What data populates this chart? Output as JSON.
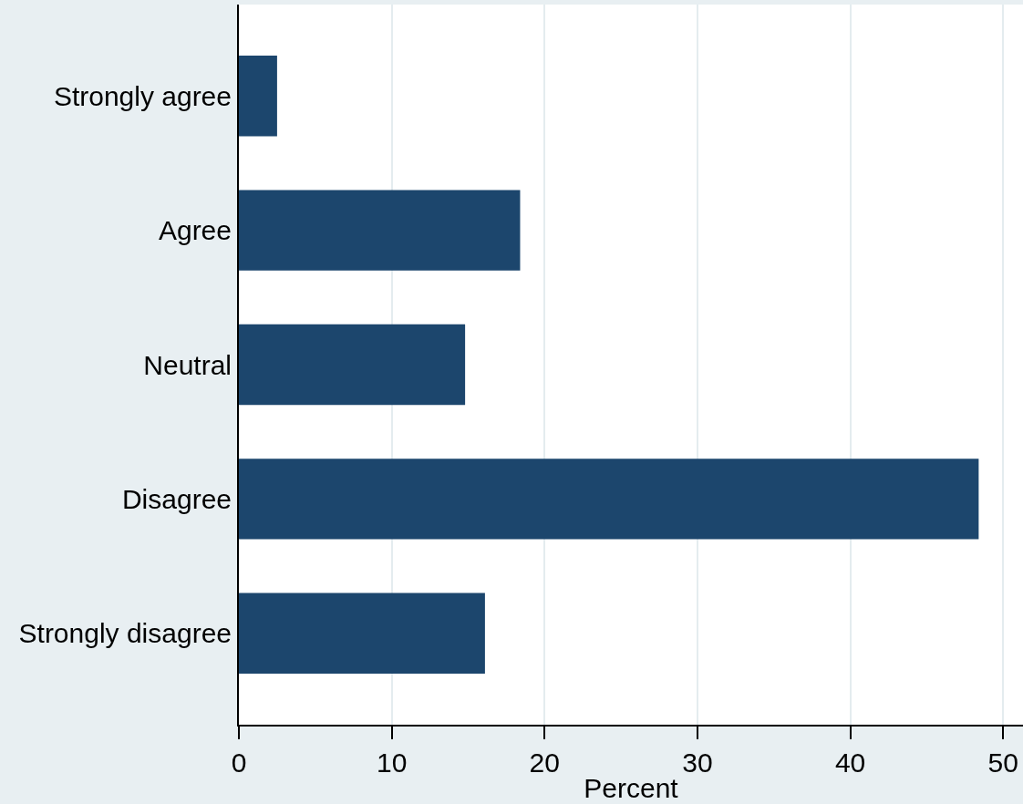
{
  "chart_data": {
    "type": "bar",
    "orientation": "horizontal",
    "xlabel": "Percent",
    "categories": [
      "Strongly agree",
      "Agree",
      "Neutral",
      "Disagree",
      "Strongly disagree"
    ],
    "values": [
      2.5,
      18.4,
      14.8,
      48.4,
      16.1
    ],
    "color": "#1c466d",
    "xlim": [
      0,
      51.3
    ],
    "xticks": [
      0,
      10,
      20,
      30,
      40,
      50
    ],
    "grid": "x"
  }
}
